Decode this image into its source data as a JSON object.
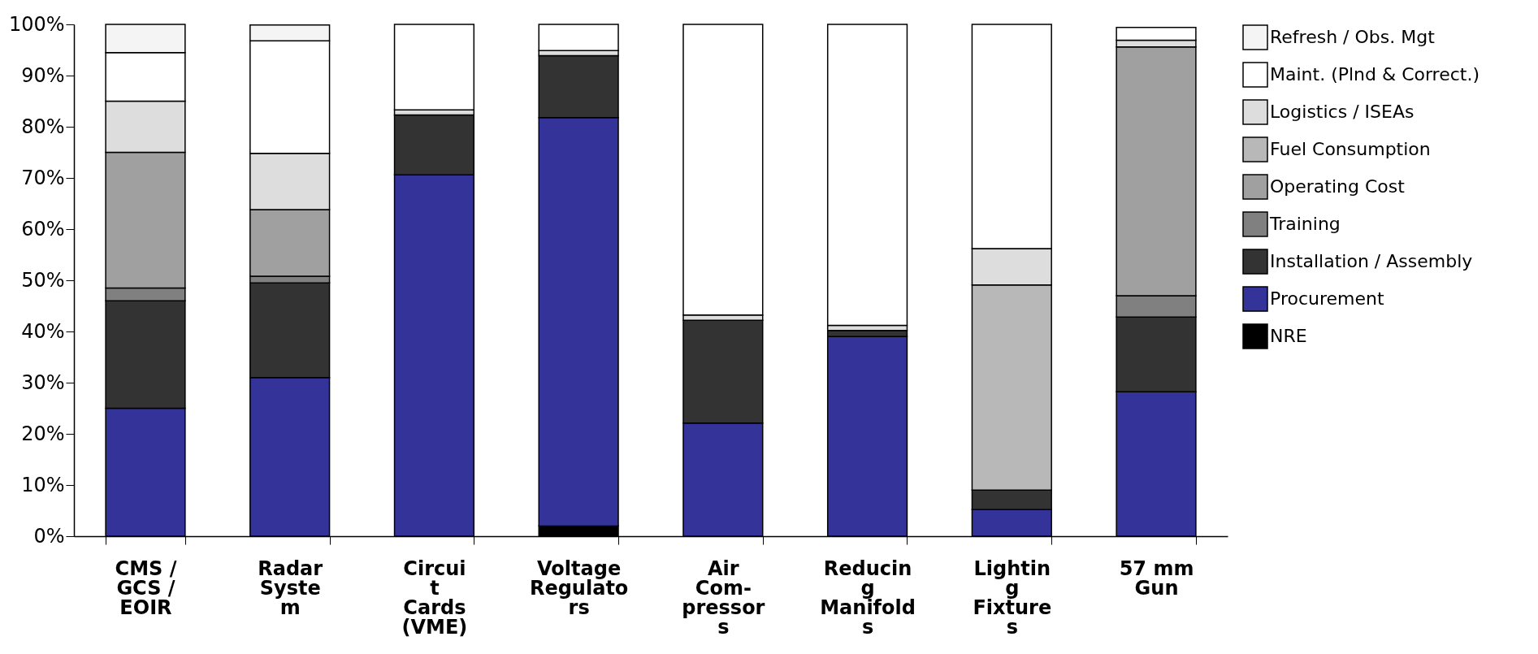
{
  "chart_data": {
    "type": "bar",
    "stacked": true,
    "categories": [
      "CMS /\nGCS /\nEOIR",
      "Radar\nSyste\nm",
      "Circui\nt\nCards\n(VME)",
      "Voltage\nRegulato\nrs",
      "Air\nCom-\npressor\ns",
      "Reducin\ng\nManifold\ns",
      "Lightin\ng\nFixture\ns",
      "57 mm\nGun"
    ],
    "series": [
      {
        "name": "NRE",
        "color": "#000000",
        "values": [
          0,
          0,
          0,
          2,
          0,
          0,
          0,
          0
        ]
      },
      {
        "name": "Procurement",
        "color": "#333399",
        "values": [
          25,
          31,
          70.6,
          79.8,
          22.1,
          39,
          5.2,
          28.2
        ]
      },
      {
        "name": "Installation / Assembly",
        "color": "#333333",
        "values": [
          21,
          18.5,
          11.7,
          12.1,
          20.1,
          1.2,
          3.8,
          14.6
        ]
      },
      {
        "name": "Training",
        "color": "#808080",
        "values": [
          2.5,
          1.3,
          0,
          0,
          0,
          0,
          0,
          4.2
        ]
      },
      {
        "name": "Operating Cost",
        "color": "#a0a0a0",
        "values": [
          26.5,
          13,
          0,
          0,
          0,
          0,
          0,
          48.6
        ]
      },
      {
        "name": "Fuel Consumption",
        "color": "#b8b8b8",
        "values": [
          0,
          0,
          0,
          0,
          0,
          0,
          40.1,
          0
        ]
      },
      {
        "name": "Logistics / ISEAs",
        "color": "#dddddd",
        "values": [
          10,
          11,
          1,
          1,
          1,
          1,
          7.1,
          1.3
        ]
      },
      {
        "name": "Maint. (Plnd & Correct.)",
        "color": "#ffffff",
        "values": [
          9.5,
          22,
          16.7,
          5.1,
          56.8,
          58.8,
          43.8,
          2.5
        ]
      },
      {
        "name": "Refresh / Obs. Mgt",
        "color": "#f4f4f4",
        "values": [
          5.5,
          3.1,
          0,
          0,
          0,
          0,
          0,
          0
        ]
      }
    ],
    "ylim": [
      0,
      100
    ],
    "yticks": [
      {
        "value": 0,
        "label": "0%"
      },
      {
        "value": 10,
        "label": "10%"
      },
      {
        "value": 20,
        "label": "20%"
      },
      {
        "value": 30,
        "label": "30%"
      },
      {
        "value": 40,
        "label": "40%"
      },
      {
        "value": 50,
        "label": "50%"
      },
      {
        "value": 60,
        "label": "60%"
      },
      {
        "value": 70,
        "label": "70%"
      },
      {
        "value": 80,
        "label": "80%"
      },
      {
        "value": 90,
        "label": "90%"
      },
      {
        "value": 100,
        "label": "100%"
      }
    ],
    "grid": false,
    "legend": "top right"
  }
}
